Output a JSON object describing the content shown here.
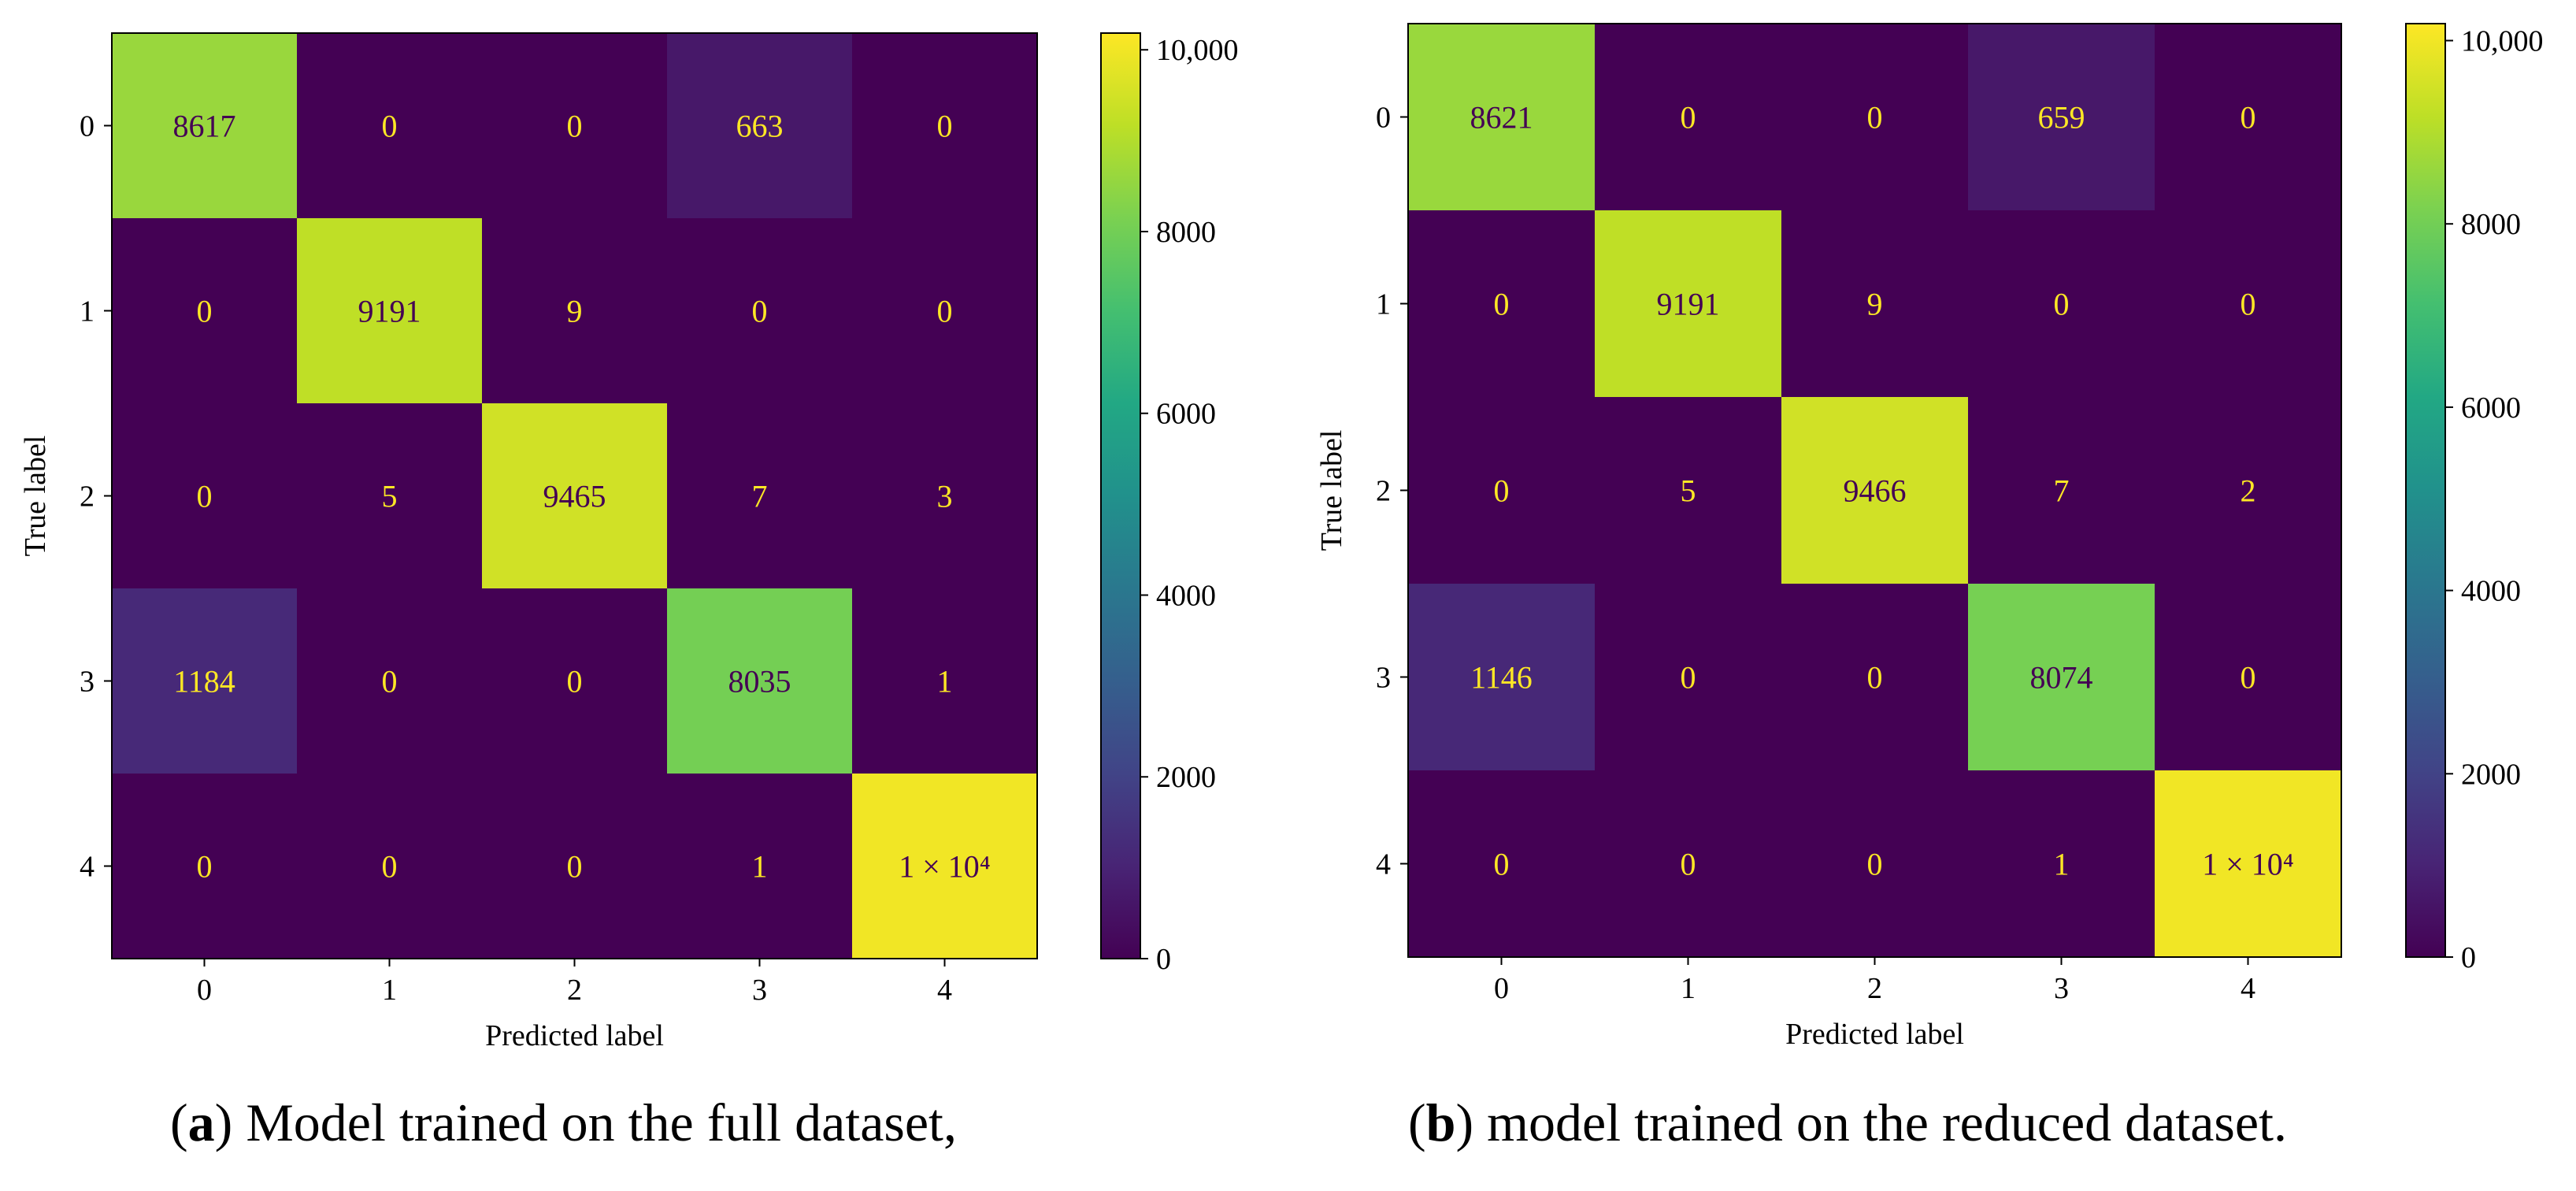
{
  "chart_data": [
    {
      "type": "heatmap",
      "xlabel": "Predicted label",
      "ylabel": "True label",
      "x_ticks": [
        "0",
        "1",
        "2",
        "3",
        "4"
      ],
      "y_ticks": [
        "0",
        "1",
        "2",
        "3",
        "4"
      ],
      "values": [
        [
          8617,
          0,
          0,
          663,
          0
        ],
        [
          0,
          9191,
          9,
          0,
          0
        ],
        [
          0,
          5,
          9465,
          7,
          3
        ],
        [
          1184,
          0,
          0,
          8035,
          1
        ],
        [
          0,
          0,
          0,
          1,
          10000
        ]
      ],
      "cell_labels": [
        [
          "8617",
          "0",
          "0",
          "663",
          "0"
        ],
        [
          "0",
          "9191",
          "9",
          "0",
          "0"
        ],
        [
          "0",
          "5",
          "9465",
          "7",
          "3"
        ],
        [
          "1184",
          "0",
          "0",
          "8035",
          "1"
        ],
        [
          "0",
          "0",
          "0",
          "1",
          "1 × 10⁴"
        ]
      ],
      "colorbar": {
        "colormap": "viridis",
        "range": [
          0,
          10184
        ],
        "ticks": [
          0,
          2000,
          4000,
          6000,
          8000,
          10000
        ],
        "tick_labels": [
          "0",
          "2000",
          "4000",
          "6000",
          "8000",
          "10,000"
        ]
      },
      "caption": {
        "letter": "a",
        "text": " Model trained on the full dataset,"
      }
    },
    {
      "type": "heatmap",
      "xlabel": "Predicted label",
      "ylabel": "True label",
      "x_ticks": [
        "0",
        "1",
        "2",
        "3",
        "4"
      ],
      "y_ticks": [
        "0",
        "1",
        "2",
        "3",
        "4"
      ],
      "values": [
        [
          8621,
          0,
          0,
          659,
          0
        ],
        [
          0,
          9191,
          9,
          0,
          0
        ],
        [
          0,
          5,
          9466,
          7,
          2
        ],
        [
          1146,
          0,
          0,
          8074,
          0
        ],
        [
          0,
          0,
          0,
          1,
          10000
        ]
      ],
      "cell_labels": [
        [
          "8621",
          "0",
          "0",
          "659",
          "0"
        ],
        [
          "0",
          "9191",
          "9",
          "0",
          "0"
        ],
        [
          "0",
          "5",
          "9466",
          "7",
          "2"
        ],
        [
          "1146",
          "0",
          "0",
          "8074",
          "0"
        ],
        [
          "0",
          "0",
          "0",
          "1",
          "1 × 10⁴"
        ]
      ],
      "colorbar": {
        "colormap": "viridis",
        "range": [
          0,
          10185
        ],
        "ticks": [
          0,
          2000,
          4000,
          6000,
          8000,
          10000
        ],
        "tick_labels": [
          "0",
          "2000",
          "4000",
          "6000",
          "8000",
          "10,000"
        ]
      },
      "caption": {
        "letter": "b",
        "text": " model trained on the reduced dataset."
      }
    }
  ]
}
